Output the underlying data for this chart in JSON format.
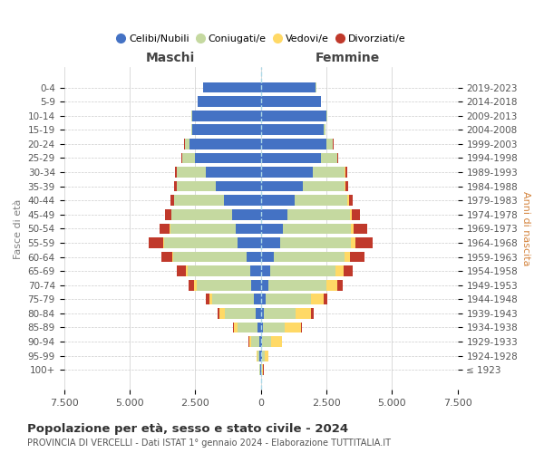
{
  "age_groups": [
    "100+",
    "95-99",
    "90-94",
    "85-89",
    "80-84",
    "75-79",
    "70-74",
    "65-69",
    "60-64",
    "55-59",
    "50-54",
    "45-49",
    "40-44",
    "35-39",
    "30-34",
    "25-29",
    "20-24",
    "15-19",
    "10-14",
    "5-9",
    "0-4"
  ],
  "birth_years": [
    "≤ 1923",
    "1924-1928",
    "1929-1933",
    "1934-1938",
    "1939-1943",
    "1944-1948",
    "1949-1953",
    "1954-1958",
    "1959-1963",
    "1964-1968",
    "1969-1973",
    "1974-1978",
    "1979-1983",
    "1984-1988",
    "1989-1993",
    "1994-1998",
    "1999-2003",
    "2004-2008",
    "2009-2013",
    "2014-2018",
    "2019-2023"
  ],
  "males": {
    "celibi": [
      30,
      50,
      70,
      130,
      180,
      250,
      350,
      400,
      550,
      900,
      950,
      1100,
      1400,
      1700,
      2100,
      2500,
      2700,
      2600,
      2600,
      2400,
      2200
    ],
    "coniugati": [
      30,
      80,
      300,
      750,
      1200,
      1600,
      2100,
      2400,
      2800,
      2800,
      2500,
      2300,
      1900,
      1500,
      1100,
      500,
      200,
      50,
      30,
      10,
      5
    ],
    "vedovi": [
      5,
      20,
      80,
      150,
      200,
      120,
      80,
      50,
      30,
      20,
      10,
      5,
      5,
      5,
      5,
      5,
      5,
      0,
      0,
      0,
      0
    ],
    "divorziati": [
      5,
      5,
      10,
      30,
      80,
      120,
      230,
      350,
      400,
      550,
      400,
      250,
      150,
      100,
      60,
      30,
      10,
      5,
      5,
      0,
      0
    ]
  },
  "females": {
    "nubili": [
      20,
      40,
      60,
      100,
      130,
      200,
      300,
      350,
      500,
      750,
      850,
      1000,
      1300,
      1600,
      2000,
      2300,
      2500,
      2400,
      2500,
      2300,
      2100
    ],
    "coniugate": [
      30,
      100,
      350,
      800,
      1200,
      1700,
      2200,
      2500,
      2700,
      2700,
      2600,
      2400,
      2000,
      1600,
      1200,
      600,
      250,
      70,
      30,
      10,
      5
    ],
    "vedove": [
      50,
      150,
      400,
      650,
      600,
      500,
      400,
      300,
      200,
      150,
      100,
      80,
      50,
      30,
      20,
      10,
      5,
      5,
      0,
      0,
      0
    ],
    "divorziate": [
      5,
      5,
      10,
      30,
      80,
      120,
      220,
      350,
      550,
      650,
      500,
      300,
      150,
      100,
      60,
      30,
      10,
      5,
      0,
      0,
      0
    ]
  },
  "colors": {
    "celibi_nubili": "#4472C4",
    "coniugati": "#C5D9A0",
    "vedovi": "#FFD966",
    "divorziati": "#C0392B"
  },
  "title": "Popolazione per età, sesso e stato civile - 2024",
  "subtitle": "PROVINCIA DI VERCELLI - Dati ISTAT 1° gennaio 2024 - Elaborazione TUTTITALIA.IT",
  "xlabel_left": "Maschi",
  "xlabel_right": "Femmine",
  "ylabel_left": "Fasce di età",
  "ylabel_right": "Anni di nascita",
  "xlim": 7500,
  "xtick_labels": [
    "7.500",
    "5.000",
    "2.500",
    "0",
    "2.500",
    "5.000",
    "7.500"
  ],
  "legend_labels": [
    "Celibi/Nubili",
    "Coniugati/e",
    "Vedovi/e",
    "Divorziati/e"
  ],
  "background_color": "#ffffff",
  "grid_color": "#cccccc"
}
